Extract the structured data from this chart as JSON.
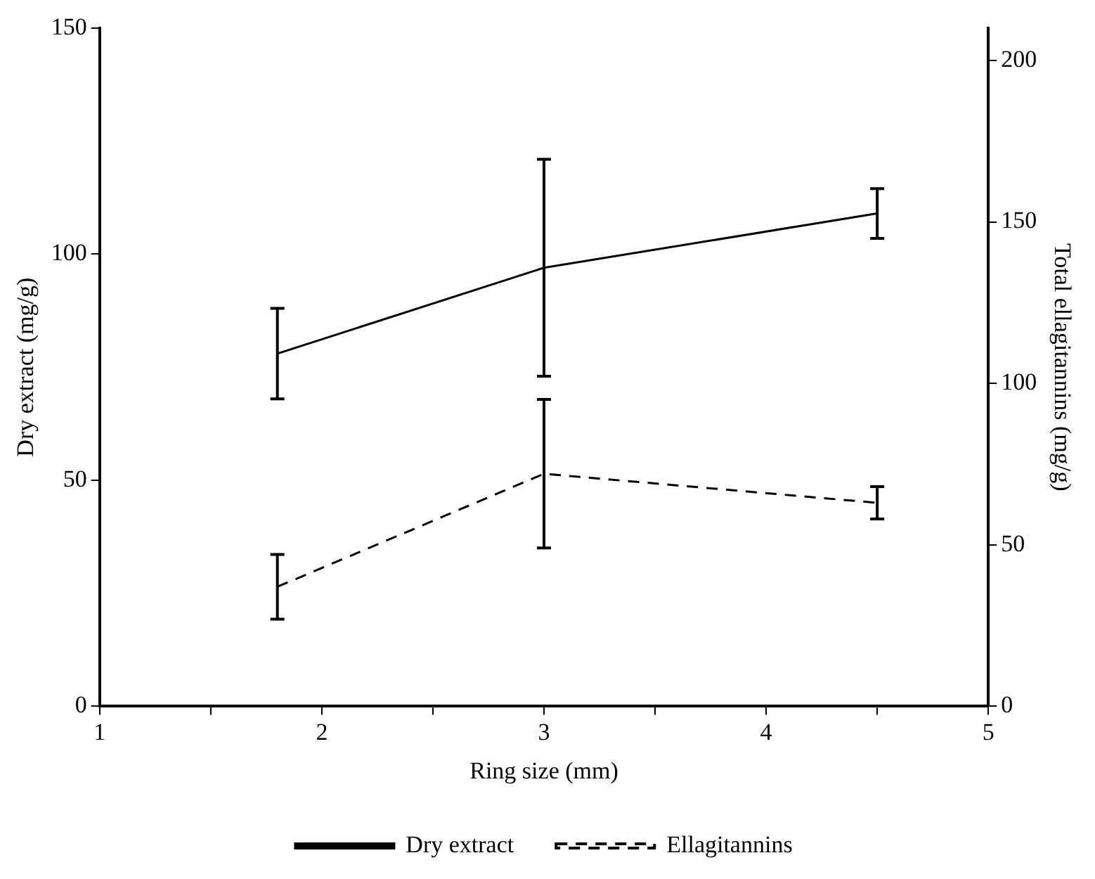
{
  "chart_data": {
    "type": "line",
    "xlabel": "Ring size (mm)",
    "ylabel": "Dry extract (mg/g)",
    "y2label": "Total ellagitannins (mg/g)",
    "xlim": [
      1,
      5
    ],
    "xticks": [
      1,
      {
        "value": 1.5,
        "label": null
      },
      2,
      {
        "value": 2.5,
        "label": null
      },
      3,
      {
        "value": 3.5,
        "label": null
      },
      4,
      {
        "value": 4.5,
        "label": null
      },
      5
    ],
    "ylim": [
      0,
      150
    ],
    "yticks": [
      0,
      50,
      100,
      150
    ],
    "y2lim": [
      0,
      210
    ],
    "y2ticks": [
      0,
      50,
      100,
      150,
      200
    ],
    "grid": false,
    "legend": "bottom",
    "marker": "none",
    "series": [
      {
        "name": "Dry extract",
        "color": "#000000",
        "line_style": "solid",
        "x": [
          1.8,
          3,
          4.5
        ],
        "values": [
          78,
          97,
          109
        ],
        "errors": [
          10,
          24,
          5.5
        ]
      },
      {
        "name": "Ellagitannins",
        "color": "#000000",
        "line_style": "dashed",
        "axis": "y2",
        "x": [
          1.8,
          3,
          4.5
        ],
        "values": [
          37,
          72,
          63
        ],
        "errors": [
          10,
          23,
          5
        ]
      }
    ]
  }
}
